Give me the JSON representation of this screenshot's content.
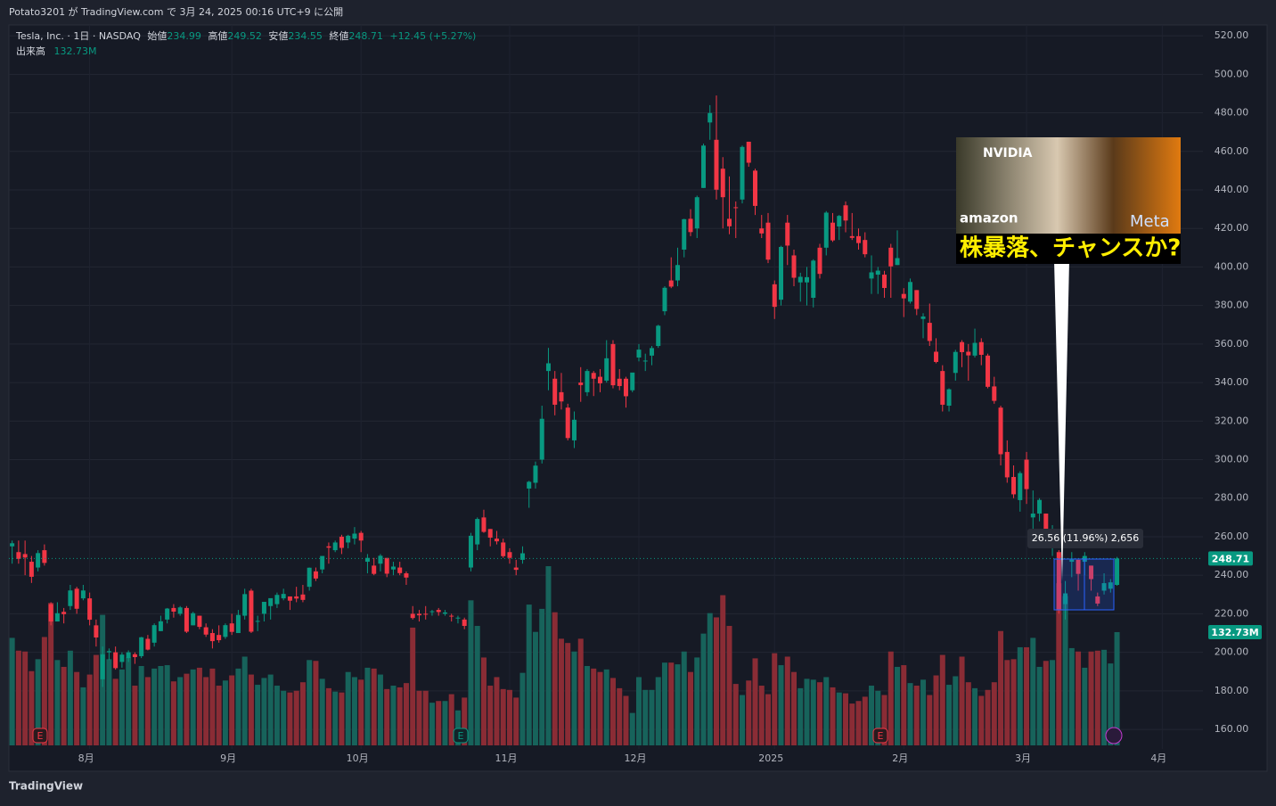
{
  "top_bar": "Potato3201 が TradingView.com で 3月 24, 2025 00:16 UTC+9 に公開",
  "footer": "TradingView",
  "header": {
    "open_label": "始値",
    "high_label": "高値",
    "low_label": "安値",
    "close_label": "終値",
    "change": "+12.45 (+5.27%)",
    "volume_label": "出来高",
    "volume_text": "132.73M"
  },
  "measure_label": "26.56 (11.96%) 2,656",
  "event_markers": [
    "E",
    "E",
    "E"
  ],
  "thumbnail": {
    "brands": [
      "NVIDIA",
      "amazon",
      "Meta"
    ],
    "caption": "株暴落、チャンスか?"
  },
  "chart_data": {
    "type": "candlestick",
    "title": "Tesla, Inc. · 1日 · NASDAQ",
    "up_color": "#089981",
    "down_color": "#f23645",
    "volume_up_color": "#17635b",
    "volume_down_color": "#8a2c35",
    "grid": true,
    "ylim": [
      151.7,
      525.6
    ],
    "yticks": [
      {
        "value": 160,
        "label": "160.00"
      },
      {
        "value": 180,
        "label": "180.00"
      },
      {
        "value": 200,
        "label": "200.00"
      },
      {
        "value": 220,
        "label": "220.00"
      },
      {
        "value": 240,
        "label": "240.00"
      },
      {
        "value": 260,
        "label": "260.00"
      },
      {
        "value": 280,
        "label": "280.00"
      },
      {
        "value": 300,
        "label": "300.00"
      },
      {
        "value": 320,
        "label": "320.00"
      },
      {
        "value": 340,
        "label": "340.00"
      },
      {
        "value": 360,
        "label": "360.00"
      },
      {
        "value": 380,
        "label": "380.00"
      },
      {
        "value": 400,
        "label": "400.00"
      },
      {
        "value": 420,
        "label": "420.00"
      },
      {
        "value": 440,
        "label": "440.00"
      },
      {
        "value": 460,
        "label": "460.00"
      },
      {
        "value": 480,
        "label": "480.00"
      },
      {
        "value": 500,
        "label": "500.00"
      },
      {
        "value": 520,
        "label": "520.00"
      }
    ],
    "xlim": [
      -0.5,
      184.3
    ],
    "xticks": [
      {
        "value": 12,
        "label": "8月"
      },
      {
        "value": 34,
        "label": "9月"
      },
      {
        "value": 54,
        "label": "10月"
      },
      {
        "value": 77,
        "label": "11月"
      },
      {
        "value": 97,
        "label": "12月"
      },
      {
        "value": 118,
        "label": "2025"
      },
      {
        "value": 138,
        "label": "2月"
      },
      {
        "value": 157,
        "label": "3月"
      },
      {
        "value": 178,
        "label": "4月"
      }
    ],
    "open": [
      255,
      252,
      251,
      247,
      244,
      253,
      225,
      216,
      221,
      224,
      233,
      228,
      228,
      214,
      186,
      200,
      200,
      195,
      197,
      199,
      198,
      207,
      205,
      211,
      217,
      223,
      220,
      223,
      214,
      219,
      213,
      210,
      209,
      208,
      215,
      210,
      219,
      232,
      216,
      220,
      224,
      225,
      228,
      229,
      229,
      230,
      234,
      242,
      243,
      255,
      253,
      260,
      257,
      259,
      262,
      247,
      245,
      246,
      249,
      243,
      244,
      241,
      220,
      220,
      220,
      221,
      222,
      220,
      219,
      218,
      217,
      244,
      256,
      270,
      264,
      259,
      257,
      252,
      244,
      248,
      285,
      288,
      300,
      346,
      342,
      335,
      327,
      310,
      340,
      335,
      345,
      343,
      341,
      360,
      342,
      342,
      336,
      353,
      351,
      354,
      359,
      377,
      393,
      393,
      409,
      425,
      420,
      441,
      475,
      466,
      451,
      425,
      431,
      435,
      465,
      450,
      420,
      423,
      391,
      383,
      423,
      406,
      392,
      392,
      384,
      410,
      410,
      423,
      421,
      432,
      416,
      416,
      414,
      394,
      396,
      396,
      410,
      401,
      386,
      382,
      388,
      373,
      371,
      356,
      346,
      328,
      345,
      361,
      356,
      354,
      361,
      354,
      338,
      327,
      304,
      291,
      279,
      300,
      270,
      272,
      272,
      259,
      252,
      225,
      247,
      248,
      247,
      245,
      229,
      232,
      233,
      234.99
    ],
    "high": [
      258,
      258,
      258,
      250,
      253,
      256,
      226,
      226,
      223,
      235,
      234,
      235,
      231,
      217,
      203,
      202,
      203,
      200,
      201,
      200,
      208,
      209,
      215,
      219,
      223,
      225,
      224,
      224,
      221,
      219,
      215,
      212,
      214,
      215,
      220,
      222,
      233,
      233,
      219,
      226,
      228,
      231,
      233,
      229,
      234,
      235,
      244,
      244,
      250,
      257,
      258,
      261,
      261,
      265,
      263,
      251,
      249,
      251,
      249,
      247,
      247,
      242,
      224,
      222,
      224,
      222,
      223,
      222,
      220,
      219,
      218,
      262,
      270,
      274,
      264,
      263,
      259,
      254,
      248,
      255,
      289,
      299,
      328,
      358,
      346,
      345,
      329,
      325,
      348,
      347,
      346,
      347,
      362,
      362,
      347,
      343,
      345,
      360,
      355,
      359,
      370,
      390,
      405,
      410,
      425,
      430,
      437,
      464,
      484,
      489,
      457,
      447,
      434,
      463,
      465,
      451,
      427,
      428,
      393,
      411,
      427,
      409,
      397,
      400,
      404,
      412,
      429,
      428,
      427,
      434,
      428,
      420,
      418,
      406,
      400,
      398,
      412,
      419,
      389,
      394,
      388,
      376,
      381,
      363,
      349,
      337,
      357,
      362,
      360,
      368,
      363,
      355,
      343,
      328,
      310,
      297,
      294,
      304,
      284,
      280,
      272,
      266,
      253,
      237,
      252,
      248,
      252,
      245,
      231,
      241,
      238,
      249.52
    ],
    "low": [
      246,
      246,
      240,
      236,
      242,
      245,
      214,
      216,
      215,
      222,
      220,
      227,
      214,
      203,
      182,
      196,
      191,
      192,
      195,
      194,
      197,
      201,
      203,
      211,
      215,
      218,
      219,
      210,
      214,
      212,
      208,
      202,
      205,
      207,
      209,
      210,
      217,
      210,
      211,
      216,
      217,
      223,
      227,
      222,
      226,
      226,
      232,
      237,
      241,
      246,
      252,
      251,
      254,
      256,
      252,
      241,
      240,
      242,
      239,
      240,
      240,
      235,
      217,
      216,
      217,
      219,
      219,
      219,
      216,
      215,
      212,
      242,
      253,
      262,
      255,
      256,
      249,
      246,
      240,
      246,
      275,
      285,
      298,
      336,
      323,
      326,
      310,
      306,
      330,
      333,
      333,
      335,
      340,
      337,
      336,
      327,
      335,
      351,
      346,
      349,
      358,
      375,
      389,
      390,
      405,
      416,
      415,
      441,
      466,
      435,
      420,
      417,
      415,
      433,
      452,
      427,
      415,
      402,
      373,
      380,
      401,
      390,
      382,
      380,
      379,
      394,
      406,
      413,
      414,
      418,
      414,
      409,
      405,
      386,
      386,
      384,
      384,
      401,
      374,
      381,
      375,
      363,
      359,
      350,
      325,
      325,
      341,
      348,
      341,
      353,
      349,
      337,
      329,
      297,
      288,
      280,
      273,
      277,
      262,
      268,
      260,
      250,
      220,
      217,
      239,
      232,
      240,
      232,
      224,
      230,
      231,
      234.55
    ],
    "close": [
      256.6,
      248.5,
      249.2,
      239.2,
      251.5,
      246.4,
      216.0,
      220.3,
      219.8,
      232.1,
      222.6,
      232.1,
      216.9,
      207.7,
      198.9,
      200.6,
      191.8,
      198.8,
      200.0,
      197.5,
      207.8,
      201.4,
      214.1,
      216.1,
      222.7,
      221.1,
      223.3,
      210.7,
      220.3,
      213.2,
      209.2,
      205.8,
      206.3,
      214.1,
      210.6,
      219.4,
      230.2,
      210.7,
      216.3,
      226.2,
      228.1,
      229.8,
      230.3,
      226.8,
      227.9,
      227.2,
      243.9,
      238.3,
      250.0,
      254.3,
      257.0,
      254.2,
      260.5,
      261.6,
      258.0,
      249.0,
      240.7,
      250.1,
      240.8,
      244.5,
      241.1,
      238.8,
      217.8,
      219.2,
      219.6,
      221.3,
      220.9,
      220.7,
      218.9,
      218.0,
      213.7,
      260.5,
      269.2,
      262.5,
      259.5,
      257.6,
      249.9,
      249.0,
      242.8,
      251.4,
      288.5,
      296.9,
      321.2,
      350.0,
      328.5,
      330.2,
      311.2,
      320.7,
      338.7,
      346.0,
      342.0,
      339.6,
      352.6,
      338.6,
      338.2,
      332.9,
      345.2,
      357.1,
      351.4,
      357.9,
      369.5,
      389.2,
      389.8,
      401.0,
      424.8,
      418.1,
      436.2,
      463.0,
      479.9,
      440.1,
      436.2,
      421.1,
      430.6,
      462.3,
      454.1,
      431.7,
      417.4,
      403.8,
      379.3,
      410.4,
      411.1,
      394.4,
      394.9,
      394.7,
      403.3,
      396.4,
      428.2,
      413.8,
      426.5,
      424.1,
      415.1,
      412.4,
      406.6,
      397.2,
      398.1,
      389.1,
      400.3,
      404.6,
      383.7,
      392.2,
      378.2,
      374.3,
      361.6,
      350.7,
      328.5,
      336.5,
      355.9,
      355.8,
      354.1,
      360.6,
      354.4,
      337.8,
      330.5,
      302.8,
      290.8,
      282.0,
      293.0,
      284.7,
      272.0,
      279.1,
      263.5,
      262.7,
      222.2,
      230.6,
      248.1,
      240.7,
      250.0,
      238.0,
      225.3,
      235.9,
      236.3,
      248.71
    ],
    "volume": [
      126,
      111,
      110,
      87,
      101,
      127,
      167,
      100,
      92,
      111,
      86,
      68,
      83,
      106,
      153,
      101,
      78,
      89,
      103,
      70,
      93,
      80,
      90,
      93,
      94,
      75,
      80,
      84,
      89,
      91,
      80,
      90,
      70,
      76,
      82,
      90,
      104,
      83,
      71,
      79,
      83,
      70,
      64,
      62,
      64,
      74,
      100,
      99,
      78,
      67,
      63,
      62,
      86,
      80,
      77,
      91,
      90,
      83,
      66,
      70,
      68,
      73,
      138,
      64,
      64,
      50,
      52,
      52,
      60,
      41,
      56,
      170,
      140,
      103,
      70,
      80,
      66,
      65,
      56,
      85,
      165,
      133,
      160,
      210,
      156,
      125,
      120,
      110,
      125,
      93,
      90,
      86,
      89,
      79,
      67,
      58,
      38,
      80,
      65,
      65,
      80,
      97,
      97,
      95,
      110,
      86,
      103,
      131,
      155,
      150,
      176,
      140,
      72,
      59,
      76,
      102,
      70,
      60,
      108,
      94,
      104,
      86,
      67,
      78,
      77,
      74,
      80,
      68,
      62,
      61,
      49,
      52,
      57,
      70,
      64,
      59,
      110,
      92,
      94,
      73,
      70,
      77,
      59,
      82,
      106,
      71,
      81,
      104,
      74,
      67,
      58,
      65,
      74,
      134,
      100,
      101,
      115,
      115,
      126,
      92,
      99,
      100,
      190,
      175,
      114,
      110,
      91,
      110,
      111,
      112,
      96,
      132.73
    ]
  }
}
